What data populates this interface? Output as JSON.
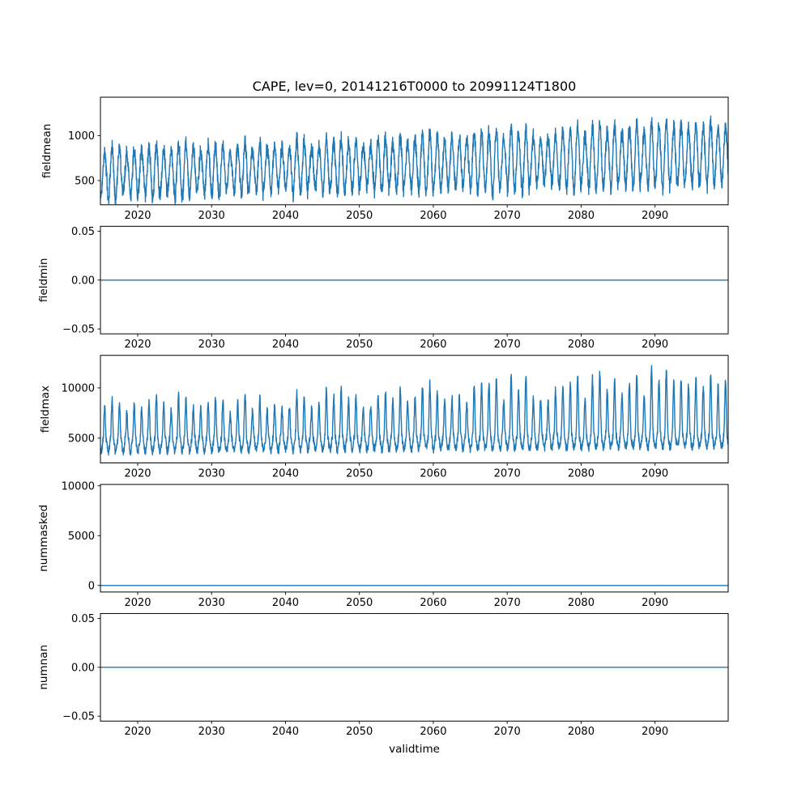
{
  "figure": {
    "title": "CAPE, lev=0, 20141216T0000 to 20991124T1800",
    "xlabel": "validtime",
    "background_color": "#ffffff",
    "line_color": "#1f77b4",
    "axis_color": "#000000",
    "seed": 42
  },
  "axes": {
    "x_range": [
      2014.96,
      2099.9
    ],
    "xticks": [
      2020,
      2030,
      2040,
      2050,
      2060,
      2070,
      2080,
      2090
    ],
    "xtick_labels": [
      "2020",
      "2030",
      "2040",
      "2050",
      "2060",
      "2070",
      "2080",
      "2090"
    ]
  },
  "chart_data": [
    {
      "type": "line",
      "ylabel": "fieldmean",
      "yticks": [
        500,
        1000
      ],
      "ytick_labels": [
        "500",
        "1000"
      ],
      "ylim": [
        230,
        1430
      ],
      "pattern": "seasonal-noisy",
      "description": "Domain-mean CAPE: dense annual oscillation with noise, slowly trending upward from ~575 to ~795",
      "mean_start": 575,
      "mean_end": 795,
      "seasonal_amp_start": 245,
      "seasonal_amp_end": 325,
      "noise_amp": 62,
      "approx_range": [
        240,
        1400
      ]
    },
    {
      "type": "line",
      "ylabel": "fieldmin",
      "yticks": [
        -0.05,
        0,
        0.05
      ],
      "ytick_labels": [
        "−0.05",
        "0.00",
        "0.05"
      ],
      "ylim": [
        -0.055,
        0.055
      ],
      "pattern": "constant",
      "value": 0,
      "description": "Domain-minimum CAPE: constant 0 for the whole period"
    },
    {
      "type": "line",
      "ylabel": "fieldmax",
      "yticks": [
        5000,
        10000
      ],
      "ytick_labels": [
        "5000",
        "10000"
      ],
      "ylim": [
        2530,
        13240
      ],
      "pattern": "seasonal-spiky",
      "description": "Domain-max CAPE: baseline ~4800-5300 with sharp annual peaks growing from ~8500 to ~12700",
      "base_start": 4800,
      "base_end": 5300,
      "peak_amp_start": 3300,
      "peak_amp_end": 5600,
      "dip_amp": 1150,
      "noise_amp": 400,
      "approx_range": [
        3200,
        12700
      ]
    },
    {
      "type": "line",
      "ylabel": "nummasked",
      "yticks": [
        0,
        5000,
        10000
      ],
      "ytick_labels": [
        "0",
        "5000",
        "10000"
      ],
      "ylim": [
        -660,
        10140
      ],
      "pattern": "constant",
      "value": 0,
      "description": "Number of masked points: flat at 0"
    },
    {
      "type": "line",
      "ylabel": "numnan",
      "yticks": [
        -0.05,
        0,
        0.05
      ],
      "ytick_labels": [
        "−0.05",
        "0.00",
        "0.05"
      ],
      "ylim": [
        -0.055,
        0.055
      ],
      "pattern": "constant",
      "value": 0,
      "description": "Number of NaN points: flat at 0"
    }
  ]
}
